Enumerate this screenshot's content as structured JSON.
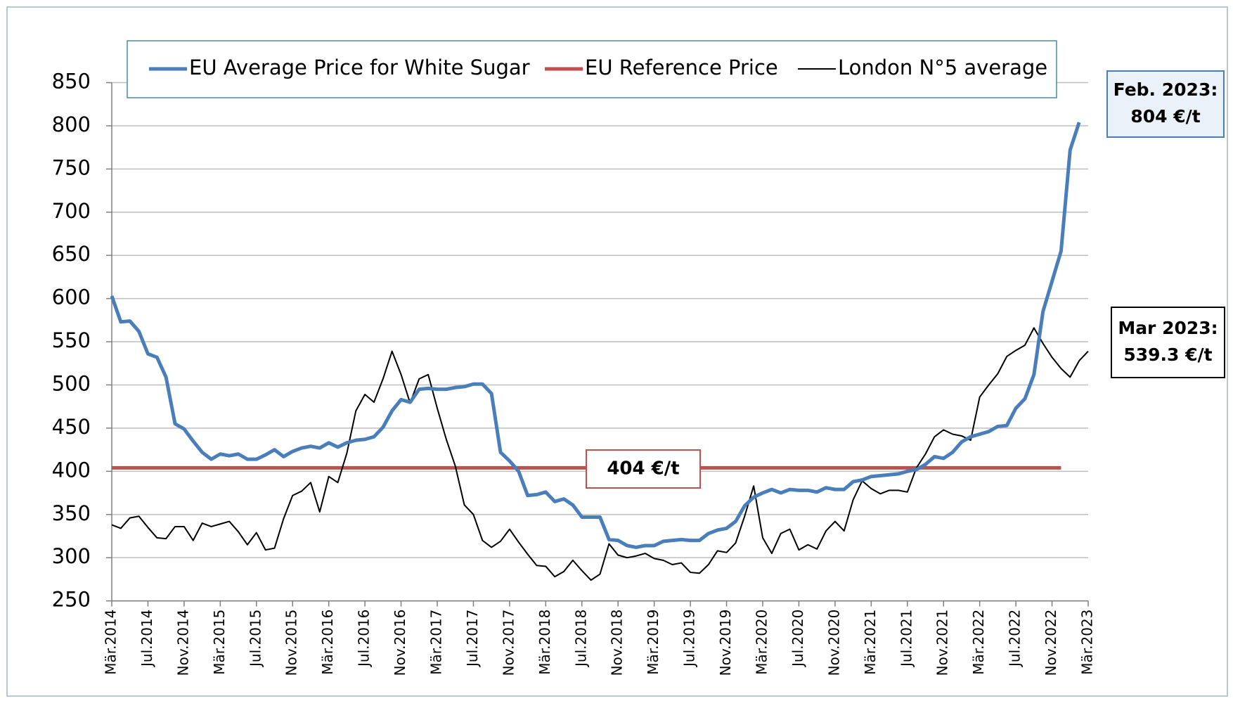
{
  "chart_data": {
    "type": "line",
    "categories": [
      "Mär.2014",
      null,
      null,
      null,
      "Jul.2014",
      null,
      null,
      null,
      "Nov.2014",
      null,
      null,
      null,
      "Mär.2015",
      null,
      null,
      null,
      "Jul.2015",
      null,
      null,
      null,
      "Nov.2015",
      null,
      null,
      null,
      "Mär.2016",
      null,
      null,
      null,
      "Jul.2016",
      null,
      null,
      null,
      "Nov.2016",
      null,
      null,
      null,
      "Mär.2017",
      null,
      null,
      null,
      "Jul.2017",
      null,
      null,
      null,
      "Nov.2017",
      null,
      null,
      null,
      "Mär.2018",
      null,
      null,
      null,
      "Jul.2018",
      null,
      null,
      null,
      "Nov.2018",
      null,
      null,
      null,
      "Mär.2019",
      null,
      null,
      null,
      "Jul.2019",
      null,
      null,
      null,
      "Nov.2019",
      null,
      null,
      null,
      "Mär.2020",
      null,
      null,
      null,
      "Jul.2020",
      null,
      null,
      null,
      "Nov.2020",
      null,
      null,
      null,
      "Mär.2021",
      null,
      null,
      null,
      "Jul.2021",
      null,
      null,
      null,
      "Nov.2021",
      null,
      null,
      null,
      "Mär.2022",
      null,
      null,
      null,
      "Jul.2022",
      null,
      null,
      null,
      "Nov.2022",
      null,
      null,
      null,
      "Mär.2023"
    ],
    "series": [
      {
        "name": "EU Average Price for White Sugar",
        "color": "#4a7ebb",
        "width": 5,
        "values": [
          603,
          573,
          574,
          562,
          536,
          532,
          509,
          455,
          449,
          435,
          422,
          414,
          420,
          418,
          420,
          414,
          414,
          419,
          425,
          417,
          423,
          427,
          429,
          427,
          433,
          428,
          433,
          436,
          437,
          440,
          451,
          470,
          483,
          480,
          495,
          496,
          495,
          495,
          497,
          498,
          501,
          501,
          490,
          422,
          412,
          400,
          372,
          373,
          376,
          365,
          368,
          361,
          347,
          347,
          347,
          321,
          320,
          314,
          312,
          314,
          314,
          319,
          320,
          321,
          320,
          320,
          328,
          332,
          334,
          342,
          360,
          370,
          375,
          379,
          375,
          379,
          378,
          378,
          376,
          381,
          379,
          379,
          388,
          390,
          394,
          395,
          396,
          397,
          400,
          402,
          408,
          417,
          415,
          422,
          434,
          440,
          443,
          446,
          452,
          453,
          473,
          484,
          512,
          585,
          620,
          655,
          772,
          804,
          null
        ]
      },
      {
        "name": "EU Reference Price",
        "color": "#c0504d",
        "width": 5,
        "values": [
          404,
          404,
          404,
          404,
          404,
          404,
          404,
          404,
          404,
          404,
          404,
          404,
          404,
          404,
          404,
          404,
          404,
          404,
          404,
          404,
          404,
          404,
          404,
          404,
          404,
          404,
          404,
          404,
          404,
          404,
          404,
          404,
          404,
          404,
          404,
          404,
          404,
          404,
          404,
          404,
          404,
          404,
          404,
          404,
          404,
          404,
          404,
          404,
          404,
          404,
          404,
          404,
          404,
          404,
          404,
          404,
          404,
          404,
          404,
          404,
          404,
          404,
          404,
          404,
          404,
          404,
          404,
          404,
          404,
          404,
          404,
          404,
          404,
          404,
          404,
          404,
          404,
          404,
          404,
          404,
          404,
          404,
          404,
          404,
          404,
          404,
          404,
          404,
          404,
          404,
          404,
          404,
          404,
          404,
          404,
          404,
          404,
          404,
          404,
          404,
          404,
          404,
          404,
          404,
          404,
          404,
          null,
          null,
          null
        ]
      },
      {
        "name": "London N°5 average",
        "color": "#000000",
        "width": 2,
        "values": [
          338,
          334,
          346,
          348,
          335,
          323,
          322,
          336,
          336,
          320,
          340,
          336,
          339,
          342,
          330,
          315,
          329,
          309,
          311,
          345,
          372,
          377,
          387,
          353,
          394,
          387,
          421,
          470,
          489,
          480,
          507,
          539,
          512,
          479,
          507,
          512,
          473,
          437,
          406,
          361,
          350,
          320,
          312,
          319,
          333,
          318,
          304,
          291,
          290,
          278,
          284,
          297,
          285,
          274,
          281,
          316,
          303,
          300,
          302,
          305,
          299,
          297,
          292,
          294,
          283,
          282,
          292,
          308,
          306,
          317,
          348,
          383,
          323,
          305,
          328,
          333,
          309,
          315,
          310,
          331,
          342,
          331,
          367,
          389,
          380,
          374,
          378,
          378,
          376,
          404,
          420,
          440,
          448,
          443,
          441,
          436,
          486,
          500,
          513,
          533,
          540,
          546,
          566,
          548,
          532,
          519,
          509,
          528,
          539
        ]
      }
    ],
    "ylim": [
      250,
      850
    ],
    "yticks": [
      250,
      300,
      350,
      400,
      450,
      500,
      550,
      600,
      650,
      700,
      750,
      800,
      850
    ],
    "grid": true,
    "annotations": [
      {
        "lines": [
          "404 €/t"
        ],
        "color": "#c00000",
        "border": "#c0504d"
      },
      {
        "lines": [
          "Feb. 2023:",
          "804 €/t"
        ],
        "color": "#2e5a8a",
        "border": "#4a7ebb"
      },
      {
        "lines": [
          "Mar 2023:",
          "539.3 €/t"
        ],
        "color": "#000000",
        "border": "#000000"
      }
    ]
  }
}
